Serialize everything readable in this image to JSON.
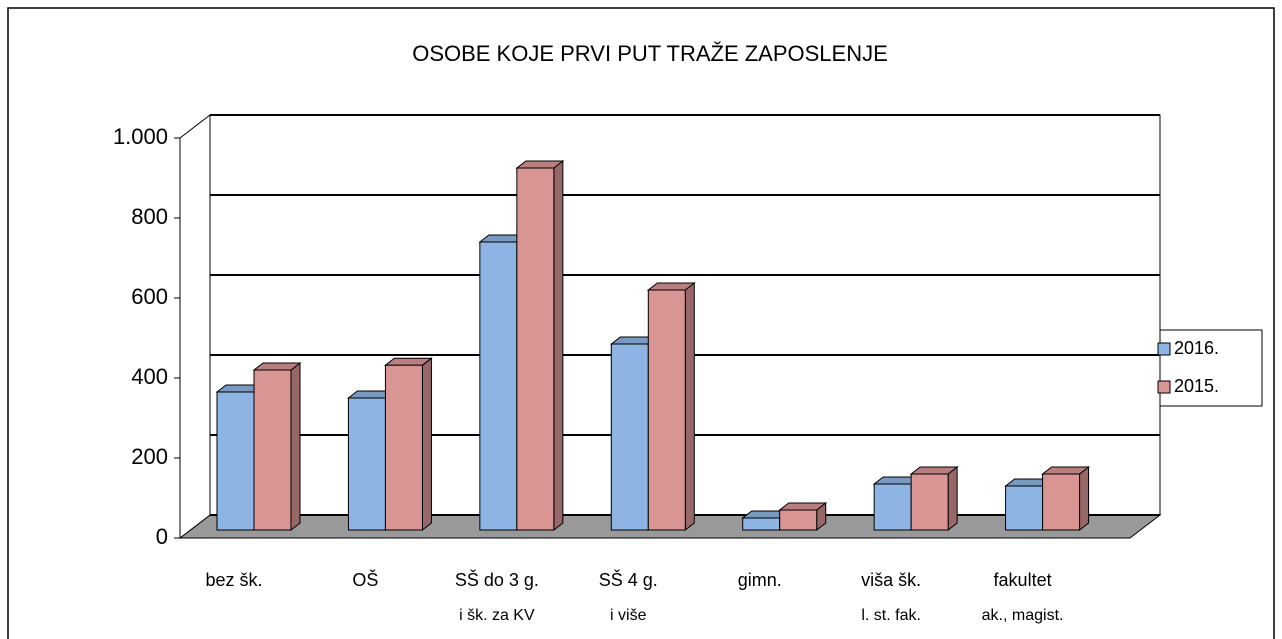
{
  "chart_data": {
    "type": "bar3d",
    "title": "OSOBE KOJE PRVI PUT TRAŽE ZAPOSLENJE",
    "categories": [
      [
        "bez šk."
      ],
      [
        "OŠ"
      ],
      [
        "SŠ do 3 g.",
        "i šk. za KV"
      ],
      [
        "SŠ 4 g.",
        "i više"
      ],
      [
        "gimn."
      ],
      [
        "viša šk.",
        "l. st. fak."
      ],
      [
        "fakultet",
        "ak., magist."
      ]
    ],
    "series": [
      {
        "name": "2016.",
        "color": "#8db4e2",
        "values": [
          345,
          330,
          720,
          465,
          30,
          115,
          110
        ]
      },
      {
        "name": "2015.",
        "color": "#d99594",
        "values": [
          400,
          412,
          905,
          600,
          50,
          140,
          140
        ]
      }
    ],
    "ylim": [
      0,
      1000
    ],
    "yticks": [
      0,
      200,
      400,
      600,
      800,
      {
        "value": 1000,
        "label": "1.000"
      }
    ],
    "grid": true,
    "legend": "right"
  }
}
